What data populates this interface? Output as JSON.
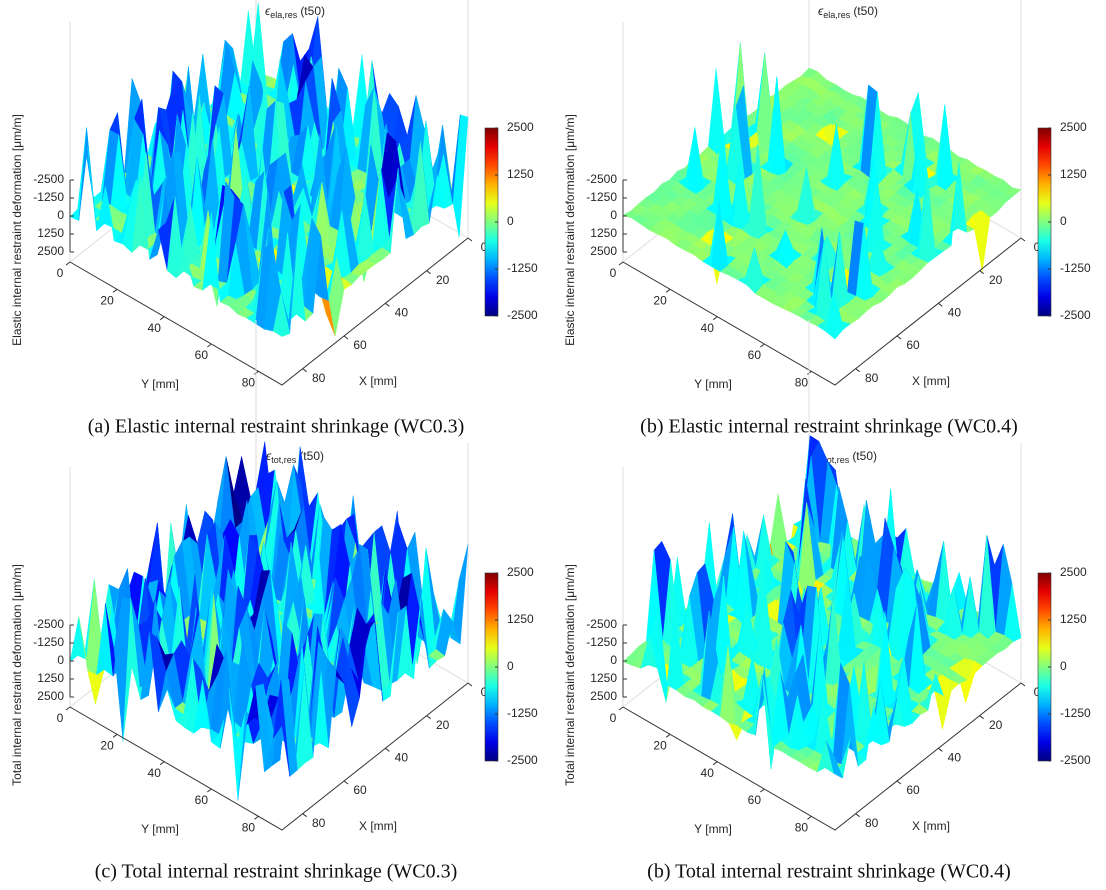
{
  "chart_data": [
    {
      "type": "surface",
      "title": {
        "symbol": "ϵ",
        "subscript": "ela,res",
        "suffix": "(t50)"
      },
      "x_label": "X [mm]",
      "y_label": "Y [mm]",
      "z_label": "Elastic internal restraint deformation [μm/m]",
      "caption": "(a) Elastic internal restraint shrinkage (WC0.3)",
      "xlim": [
        0,
        90
      ],
      "xticks": [
        0,
        20,
        40,
        60,
        80
      ],
      "ylim": [
        0,
        90
      ],
      "yticks": [
        0,
        20,
        40,
        60,
        80
      ],
      "zlim": [
        2500,
        -2500
      ],
      "zticks": [
        -2500,
        -1250,
        0,
        1250,
        2500
      ],
      "clim": [
        -2500,
        2500
      ],
      "cticks": [
        2500,
        1250,
        0,
        -1250,
        -2500
      ],
      "colormap": "jet"
    },
    {
      "type": "surface",
      "title": {
        "symbol": "ϵ",
        "subscript": "ela,res",
        "suffix": "(t50)"
      },
      "x_label": "X [mm]",
      "y_label": "Y [mm]",
      "z_label": "Elastic internal restraint deformation [μm/m]",
      "caption": "(b) Elastic internal restraint shrinkage (WC0.4)",
      "xlim": [
        0,
        90
      ],
      "xticks": [
        0,
        20,
        40,
        60,
        80
      ],
      "ylim": [
        0,
        90
      ],
      "yticks": [
        0,
        20,
        40,
        60,
        80
      ],
      "zlim": [
        2500,
        -2500
      ],
      "zticks": [
        -2500,
        -1250,
        0,
        1250,
        2500
      ],
      "clim": [
        -2500,
        2500
      ],
      "cticks": [
        2500,
        1250,
        0,
        -1250,
        -2500
      ],
      "colormap": "jet"
    },
    {
      "type": "surface",
      "title": {
        "symbol": "ϵ",
        "subscript": "tot,res",
        "suffix": "(t50)"
      },
      "x_label": "X [mm]",
      "y_label": "Y [mm]",
      "z_label": "Total internal restraint deformation [μm/m]",
      "caption": "(c) Total internal restraint shrinkage (WC0.3)",
      "xlim": [
        0,
        90
      ],
      "xticks": [
        0,
        20,
        40,
        60,
        80
      ],
      "ylim": [
        0,
        90
      ],
      "yticks": [
        0,
        20,
        40,
        60,
        80
      ],
      "zlim": [
        2500,
        -2500
      ],
      "zticks": [
        -2500,
        -1250,
        0,
        1250,
        2500
      ],
      "clim": [
        -2500,
        2500
      ],
      "cticks": [
        2500,
        1250,
        0,
        -1250,
        -2500
      ],
      "colormap": "jet"
    },
    {
      "type": "surface",
      "title": {
        "symbol": "ϵ",
        "subscript": "tot,res",
        "suffix": "(t50)"
      },
      "x_label": "X [mm]",
      "y_label": "Y [mm]",
      "z_label": "Total internal restraint deformation [μm/m]",
      "caption": "(b) Total internal restraint shrinkage (WC0.4)",
      "xlim": [
        0,
        90
      ],
      "xticks": [
        0,
        20,
        40,
        60,
        80
      ],
      "ylim": [
        0,
        90
      ],
      "yticks": [
        0,
        20,
        40,
        60,
        80
      ],
      "zlim": [
        2500,
        -2500
      ],
      "zticks": [
        -2500,
        -1250,
        0,
        1250,
        2500
      ],
      "clim": [
        -2500,
        2500
      ],
      "cticks": [
        2500,
        1250,
        0,
        -1250,
        -2500
      ],
      "colormap": "jet"
    }
  ]
}
